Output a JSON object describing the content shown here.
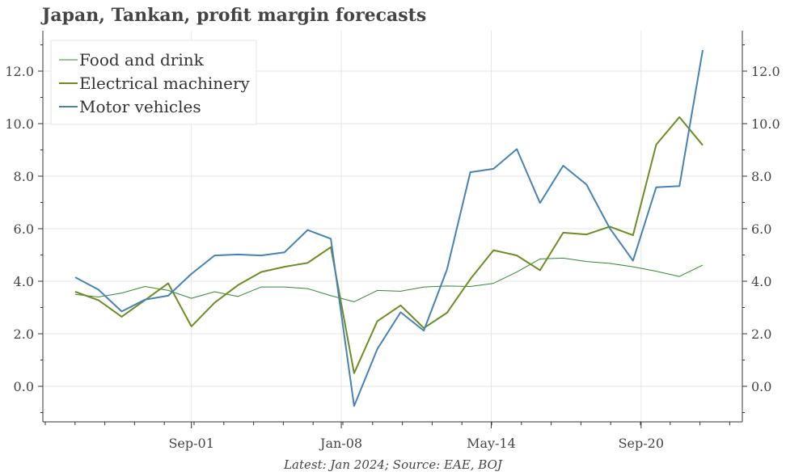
{
  "title": "Japan, Tankan, profit margin forecasts",
  "footer": "Latest: Jan 2024; Source: EAE, BOJ",
  "chart_data": {
    "type": "line",
    "x_tick_labels": [
      "Sep-01",
      "Jan-08",
      "May-14",
      "Sep-20"
    ],
    "y_ticks": [
      "0.0",
      "2.0",
      "4.0",
      "6.0",
      "8.0",
      "10.0",
      "12.0"
    ],
    "ylim": [
      -1.4,
      13.5
    ],
    "grid": true,
    "legend_position": "top-left",
    "series": [
      {
        "name": "Food and drink",
        "color": "#2e8b2e",
        "values": [
          3.5,
          3.4,
          3.55,
          3.8,
          3.65,
          3.35,
          3.6,
          3.42,
          3.78,
          3.78,
          3.72,
          3.45,
          3.22,
          3.65,
          3.62,
          3.78,
          3.82,
          3.8,
          3.92,
          4.35,
          4.85,
          4.88,
          4.75,
          4.68,
          4.55,
          4.38,
          4.18,
          4.62
        ]
      },
      {
        "name": "Electrical machinery",
        "color": "#6b8e23",
        "values": [
          3.6,
          3.28,
          2.65,
          3.28,
          3.92,
          2.28,
          3.18,
          3.85,
          4.35,
          4.55,
          4.7,
          5.3,
          0.5,
          2.48,
          3.08,
          2.22,
          2.8,
          4.08,
          5.18,
          4.98,
          4.42,
          5.85,
          5.78,
          6.08,
          5.75,
          9.2,
          10.25,
          9.18
        ]
      },
      {
        "name": "Motor vehicles",
        "color": "#4682b4",
        "values": [
          4.15,
          3.68,
          2.85,
          3.3,
          3.45,
          4.28,
          4.98,
          5.02,
          4.98,
          5.1,
          5.95,
          5.62,
          -0.75,
          1.42,
          2.82,
          2.12,
          4.45,
          8.15,
          8.28,
          9.03,
          6.98,
          8.4,
          7.68,
          6.02,
          4.78,
          7.58,
          7.62,
          12.8
        ]
      }
    ]
  }
}
